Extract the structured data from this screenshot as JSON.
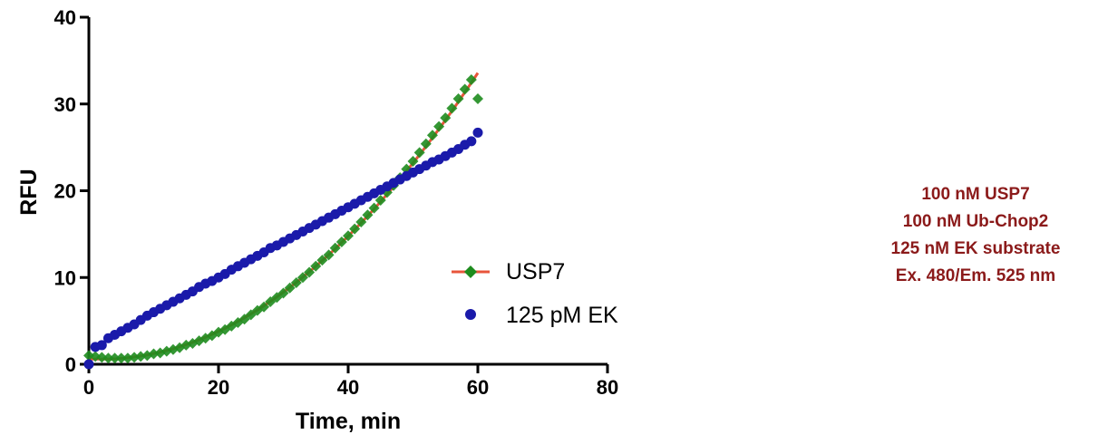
{
  "chart_data": {
    "type": "scatter",
    "title": "",
    "xlabel": "Time, min",
    "ylabel": "RFU",
    "xlim": [
      0,
      80
    ],
    "ylim": [
      0,
      40
    ],
    "x_ticks": [
      "0",
      "20",
      "40",
      "60",
      "80"
    ],
    "y_ticks": [
      "0",
      "10",
      "20",
      "30",
      "40"
    ],
    "grid": false,
    "legend": "center-right",
    "series": [
      {
        "name": "USP7",
        "marker": "diamond",
        "color": "#1e8c1e",
        "fit_color": "#e8553b",
        "fit": "quadratic",
        "x": [
          0,
          1,
          2,
          3,
          4,
          5,
          6,
          7,
          8,
          9,
          10,
          11,
          12,
          13,
          14,
          15,
          16,
          17,
          18,
          19,
          20,
          21,
          22,
          23,
          24,
          25,
          26,
          27,
          28,
          29,
          30,
          31,
          32,
          33,
          34,
          35,
          36,
          37,
          38,
          39,
          40,
          41,
          42,
          43,
          44,
          45,
          46,
          47,
          48,
          49,
          50,
          51,
          52,
          53,
          54,
          55,
          56,
          57,
          58,
          59,
          60
        ],
        "values": [
          1.0,
          0.9,
          0.8,
          0.7,
          0.7,
          0.7,
          0.7,
          0.8,
          0.9,
          1.0,
          1.2,
          1.3,
          1.5,
          1.7,
          1.9,
          2.2,
          2.4,
          2.7,
          3.0,
          3.3,
          3.7,
          4.0,
          4.4,
          4.8,
          5.2,
          5.7,
          6.2,
          6.6,
          7.2,
          7.7,
          8.2,
          8.8,
          9.4,
          10.0,
          10.6,
          11.3,
          12.0,
          12.6,
          13.4,
          14.1,
          14.8,
          15.6,
          16.4,
          17.2,
          18.0,
          18.9,
          19.8,
          20.6,
          21.5,
          22.5,
          23.4,
          24.4,
          25.4,
          26.4,
          27.4,
          28.4,
          29.5,
          30.6,
          31.7,
          32.8,
          30.6
        ]
      },
      {
        "name": "125 pM EK",
        "marker": "circle",
        "color": "#1a1aaa",
        "x": [
          0,
          1,
          2,
          3,
          4,
          5,
          6,
          7,
          8,
          9,
          10,
          11,
          12,
          13,
          14,
          15,
          16,
          17,
          18,
          19,
          20,
          21,
          22,
          23,
          24,
          25,
          26,
          27,
          28,
          29,
          30,
          31,
          32,
          33,
          34,
          35,
          36,
          37,
          38,
          39,
          40,
          41,
          42,
          43,
          44,
          45,
          46,
          47,
          48,
          49,
          50,
          51,
          52,
          53,
          54,
          55,
          56,
          57,
          58,
          59,
          60
        ],
        "values": [
          0.0,
          2.0,
          2.2,
          3.0,
          3.4,
          3.8,
          4.2,
          4.6,
          5.1,
          5.6,
          6.0,
          6.4,
          6.8,
          7.2,
          7.6,
          8.0,
          8.4,
          8.9,
          9.3,
          9.6,
          10.0,
          10.4,
          10.9,
          11.3,
          11.7,
          12.1,
          12.5,
          12.9,
          13.4,
          13.7,
          14.1,
          14.5,
          14.9,
          15.3,
          15.7,
          16.1,
          16.5,
          16.9,
          17.3,
          17.7,
          18.1,
          18.5,
          18.9,
          19.3,
          19.7,
          20.1,
          20.5,
          20.9,
          21.3,
          21.7,
          22.1,
          22.5,
          22.9,
          23.3,
          23.6,
          24.0,
          24.4,
          24.8,
          25.3,
          25.7,
          26.7
        ]
      }
    ]
  },
  "annotation": {
    "lines": [
      "100 nM USP7",
      "100 nM Ub-Chop2",
      "125 nM EK substrate",
      "Ex. 480/Em. 525 nm"
    ]
  }
}
